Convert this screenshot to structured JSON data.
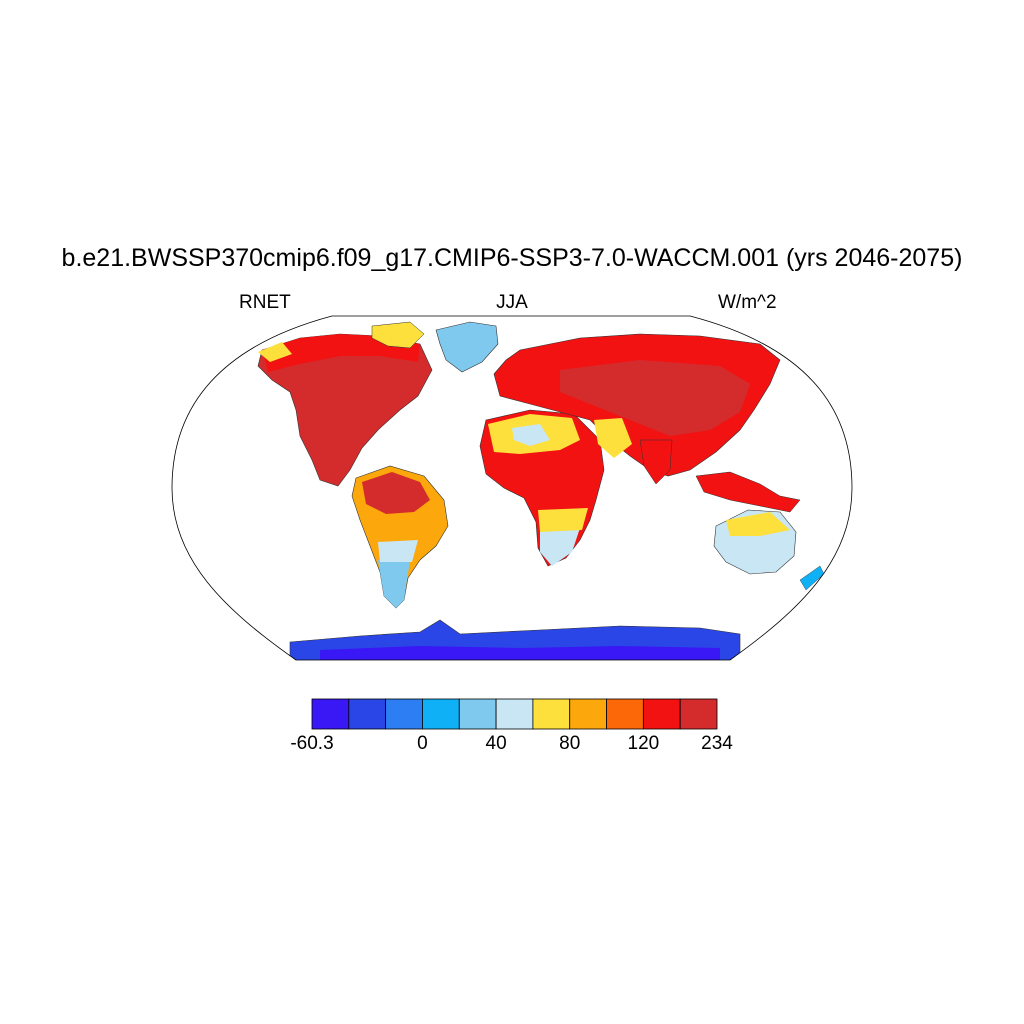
{
  "title": "b.e21.BWSSP370cmip6.f09_g17.CMIP6-SSP3-7.0-WACCM.001 (yrs 2046-2075)",
  "left_label": "RNET",
  "center_label": "JJA",
  "right_label": "W/m^2",
  "colorbar": {
    "colors": [
      "#3a17f5",
      "#2b46e6",
      "#2c7ef2",
      "#0fb0f5",
      "#7fc8ee",
      "#c9e6f5",
      "#fde03c",
      "#fca80c",
      "#fc6808",
      "#f21212",
      "#d42c2c"
    ],
    "labels": [
      {
        "text": "-60.3",
        "boundary": 0
      },
      {
        "text": "0",
        "boundary": 3
      },
      {
        "text": "40",
        "boundary": 5
      },
      {
        "text": "80",
        "boundary": 7
      },
      {
        "text": "120",
        "boundary": 9
      },
      {
        "text": "234",
        "boundary": 11
      }
    ]
  }
}
